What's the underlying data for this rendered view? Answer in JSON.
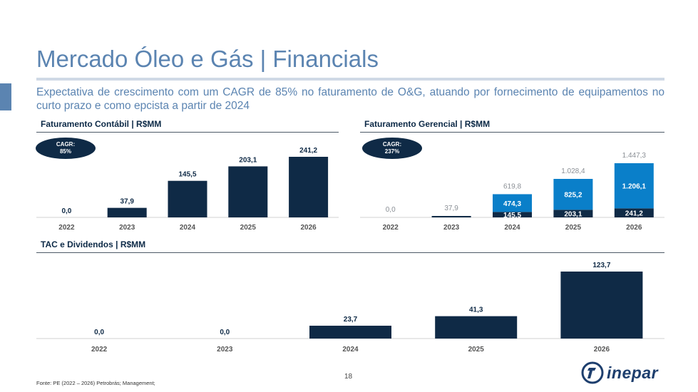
{
  "header": {
    "title": "Mercado Óleo e Gás | Financials",
    "subtitle": "Expectativa de crescimento com um CAGR de 85% no faturamento de O&G, atuando por fornecimento de equipamentos no curto prazo e como epcista a partir de 2024"
  },
  "colors": {
    "navy": "#0f2a46",
    "blue": "#0a7fc9",
    "title_blue": "#5b84b1",
    "label_grey": "#8a8f95"
  },
  "footer": {
    "source": "Fonte: PE (2022 – 2026) Petrobrás; Management;",
    "page": "18",
    "logo_text": "inepar",
    "logo_icon": "inepar-logo-icon"
  },
  "chart_data": [
    {
      "type": "bar",
      "title": "Faturamento Contábil | R$MM",
      "badge": {
        "line1": "CAGR:",
        "line2": "85%"
      },
      "categories": [
        "2022",
        "2023",
        "2024",
        "2025",
        "2026"
      ],
      "values": [
        0.0,
        37.9,
        145.5,
        203.1,
        241.2
      ],
      "labels": [
        "0,0",
        "37,9",
        "145,5",
        "203,1",
        "241,2"
      ],
      "ylim": [
        0,
        241.2
      ]
    },
    {
      "type": "bar",
      "stacked": true,
      "title": "Faturamento Gerencial | R$MM",
      "badge": {
        "line1": "CAGR:",
        "line2": "237%"
      },
      "categories": [
        "2022",
        "2023",
        "2024",
        "2025",
        "2026"
      ],
      "series": [
        {
          "values": [
            0.0,
            37.9,
            145.5,
            203.1,
            241.2
          ],
          "labels": [
            "",
            "",
            "145,5",
            "203,1",
            "241,2"
          ],
          "color": "#0f2a46"
        },
        {
          "values": [
            0.0,
            0.0,
            474.3,
            825.2,
            1206.1
          ],
          "labels": [
            "",
            "",
            "474,3",
            "825,2",
            "1.206,1"
          ],
          "color": "#0a7fc9"
        }
      ],
      "totals": [
        0.0,
        37.9,
        619.8,
        1028.4,
        1447.3
      ],
      "total_labels": [
        "0,0",
        "37,9",
        "619,8",
        "1.028,4",
        "1.447,3"
      ],
      "ylim": [
        0,
        1447.3
      ]
    },
    {
      "type": "bar",
      "title": "TAC e Dividendos | R$MM",
      "categories": [
        "2022",
        "2023",
        "2024",
        "2025",
        "2026"
      ],
      "values": [
        0.0,
        0.0,
        23.7,
        41.3,
        123.7
      ],
      "labels": [
        "0,0",
        "0,0",
        "23,7",
        "41,3",
        "123,7"
      ],
      "ylim": [
        0,
        123.7
      ]
    }
  ]
}
